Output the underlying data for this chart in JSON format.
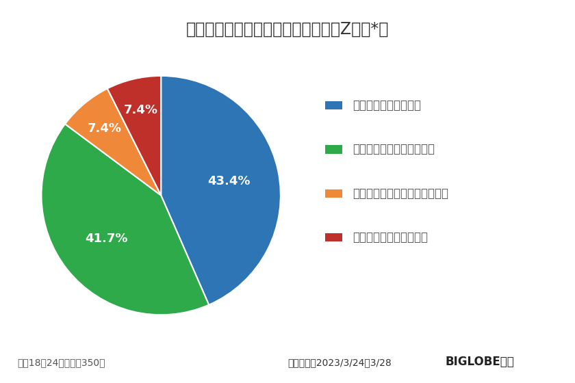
{
  "title": "他人に迷惑をかけることへの意識【Z世代*】",
  "values": [
    43.4,
    41.7,
    7.4,
    7.4
  ],
  "labels": [
    "43.4%",
    "41.7%",
    "7.4%",
    "7.4%"
  ],
  "colors": [
    "#2E75B6",
    "#2EAA4A",
    "#F0883A",
    "#C0302A"
  ],
  "legend_labels": [
    "意識して生活している",
    "やや意識して生活している",
    "あまり意識して生活していない",
    "意識して生活していない"
  ],
  "footnote": "＊：18～24歳の男女350人",
  "survey_period": "調査期間：2023/3/24～3/28",
  "brand": "BIGLOBE調べ",
  "background_color": "#FFFFFF",
  "startangle": 90,
  "label_fontsize": 13,
  "title_fontsize": 17,
  "legend_fontsize": 12,
  "footnote_fontsize": 10,
  "survey_fontsize": 10,
  "brand_fontsize": 12
}
